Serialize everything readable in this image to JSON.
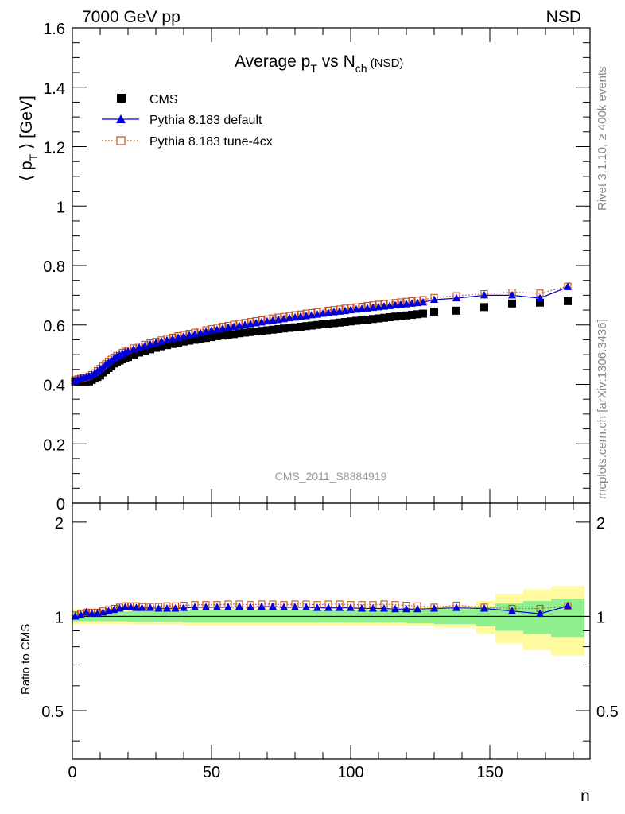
{
  "header": {
    "energy": "7000 GeV pp",
    "process": "NSD",
    "title_prefix": "Average p",
    "title_sub1": "T",
    "title_middle": " vs N",
    "title_sub2": "ch",
    "title_suffix": " (NSD)",
    "analysis_id": "CMS_2011_S8884919",
    "side_label_top": "Rivet 3.1.10, ≥ 400k events",
    "side_label_bottom": "mcplots.cern.ch [arXiv:1306.3436]"
  },
  "chart_data": [
    {
      "type": "scatter",
      "panel": "main",
      "ylabel_open": "⟨ p",
      "ylabel_sub": "T",
      "ylabel_close": " ⟩ [GeV]",
      "ylim": [
        0,
        1.6
      ],
      "xlim": [
        0,
        186
      ],
      "yticks": [
        {
          "v": 0,
          "label": "0"
        },
        {
          "v": 0.2,
          "label": "0.2"
        },
        {
          "v": 0.4,
          "label": "0.4"
        },
        {
          "v": 0.6,
          "label": "0.6"
        },
        {
          "v": 0.8,
          "label": "0.8"
        },
        {
          "v": 1.0,
          "label": "1"
        },
        {
          "v": 1.2,
          "label": "1.2"
        },
        {
          "v": 1.4,
          "label": "1.4"
        },
        {
          "v": 1.6,
          "label": "1.6"
        }
      ],
      "legend_position": "top-left",
      "series": [
        {
          "name": "CMS",
          "marker": "square",
          "color": "#000000",
          "x": [
            1,
            2,
            3,
            4,
            5,
            6,
            7,
            8,
            9,
            10,
            11,
            12,
            13,
            14,
            15,
            16,
            17,
            18,
            19,
            20,
            22,
            24,
            26,
            28,
            30,
            32,
            34,
            36,
            38,
            40,
            42,
            44,
            46,
            48,
            50,
            52,
            54,
            56,
            58,
            60,
            62,
            64,
            66,
            68,
            70,
            72,
            74,
            76,
            78,
            80,
            82,
            84,
            86,
            88,
            90,
            92,
            94,
            96,
            98,
            100,
            102,
            104,
            106,
            108,
            110,
            112,
            114,
            116,
            118,
            120,
            122,
            124,
            126,
            130,
            138,
            148,
            158,
            168,
            178
          ],
          "y": [
            0.41,
            0.41,
            0.41,
            0.41,
            0.41,
            0.41,
            0.415,
            0.42,
            0.425,
            0.43,
            0.44,
            0.447,
            0.455,
            0.462,
            0.47,
            0.476,
            0.48,
            0.484,
            0.488,
            0.492,
            0.5,
            0.507,
            0.513,
            0.518,
            0.523,
            0.528,
            0.532,
            0.536,
            0.54,
            0.544,
            0.547,
            0.55,
            0.553,
            0.556,
            0.559,
            0.562,
            0.564,
            0.567,
            0.569,
            0.572,
            0.574,
            0.576,
            0.578,
            0.58,
            0.582,
            0.584,
            0.586,
            0.588,
            0.59,
            0.592,
            0.594,
            0.596,
            0.598,
            0.6,
            0.602,
            0.604,
            0.606,
            0.608,
            0.61,
            0.612,
            0.614,
            0.616,
            0.618,
            0.62,
            0.622,
            0.624,
            0.626,
            0.628,
            0.63,
            0.632,
            0.634,
            0.636,
            0.638,
            0.645,
            0.648,
            0.66,
            0.672,
            0.675,
            0.68
          ]
        },
        {
          "name": "Pythia 8.183 default",
          "marker": "triangle",
          "line": "solid",
          "color": "#0000dd",
          "x": [
            1,
            2,
            3,
            4,
            5,
            6,
            7,
            8,
            9,
            10,
            11,
            12,
            13,
            14,
            15,
            16,
            17,
            18,
            19,
            20,
            22,
            24,
            26,
            28,
            30,
            32,
            34,
            36,
            38,
            40,
            42,
            44,
            46,
            48,
            50,
            52,
            54,
            56,
            58,
            60,
            62,
            64,
            66,
            68,
            70,
            72,
            74,
            76,
            78,
            80,
            82,
            84,
            86,
            88,
            90,
            92,
            94,
            96,
            98,
            100,
            102,
            104,
            106,
            108,
            110,
            112,
            114,
            116,
            118,
            120,
            122,
            124,
            126,
            130,
            138,
            148,
            158,
            168,
            178
          ],
          "y": [
            0.41,
            0.415,
            0.42,
            0.422,
            0.424,
            0.426,
            0.43,
            0.436,
            0.443,
            0.45,
            0.458,
            0.466,
            0.473,
            0.48,
            0.487,
            0.493,
            0.498,
            0.503,
            0.507,
            0.511,
            0.518,
            0.524,
            0.529,
            0.534,
            0.539,
            0.544,
            0.548,
            0.553,
            0.557,
            0.561,
            0.565,
            0.569,
            0.573,
            0.577,
            0.581,
            0.584,
            0.588,
            0.591,
            0.594,
            0.597,
            0.6,
            0.603,
            0.606,
            0.609,
            0.612,
            0.615,
            0.617,
            0.62,
            0.623,
            0.625,
            0.628,
            0.63,
            0.633,
            0.635,
            0.638,
            0.64,
            0.643,
            0.645,
            0.647,
            0.65,
            0.652,
            0.654,
            0.656,
            0.658,
            0.66,
            0.662,
            0.664,
            0.666,
            0.668,
            0.67,
            0.672,
            0.674,
            0.676,
            0.685,
            0.69,
            0.7,
            0.7,
            0.69,
            0.728
          ]
        },
        {
          "name": "Pythia 8.183 tune-4cx",
          "marker": "open-square",
          "line": "dotted",
          "color": "#c0501e",
          "x": [
            1,
            2,
            3,
            4,
            5,
            6,
            7,
            8,
            9,
            10,
            11,
            12,
            13,
            14,
            15,
            16,
            17,
            18,
            19,
            20,
            22,
            24,
            26,
            28,
            30,
            32,
            34,
            36,
            38,
            40,
            42,
            44,
            46,
            48,
            50,
            52,
            54,
            56,
            58,
            60,
            62,
            64,
            66,
            68,
            70,
            72,
            74,
            76,
            78,
            80,
            82,
            84,
            86,
            88,
            90,
            92,
            94,
            96,
            98,
            100,
            102,
            104,
            106,
            108,
            110,
            112,
            114,
            116,
            118,
            120,
            122,
            124,
            126,
            130,
            138,
            148,
            158,
            168,
            178
          ],
          "y": [
            0.415,
            0.418,
            0.42,
            0.422,
            0.424,
            0.427,
            0.432,
            0.438,
            0.445,
            0.453,
            0.461,
            0.469,
            0.477,
            0.484,
            0.491,
            0.497,
            0.502,
            0.507,
            0.511,
            0.515,
            0.522,
            0.528,
            0.534,
            0.539,
            0.544,
            0.549,
            0.554,
            0.558,
            0.563,
            0.567,
            0.571,
            0.575,
            0.579,
            0.583,
            0.587,
            0.591,
            0.595,
            0.598,
            0.602,
            0.605,
            0.608,
            0.611,
            0.614,
            0.617,
            0.62,
            0.623,
            0.626,
            0.628,
            0.631,
            0.634,
            0.636,
            0.639,
            0.641,
            0.644,
            0.646,
            0.649,
            0.651,
            0.653,
            0.656,
            0.658,
            0.66,
            0.662,
            0.665,
            0.667,
            0.669,
            0.671,
            0.673,
            0.675,
            0.677,
            0.679,
            0.681,
            0.683,
            0.685,
            0.692,
            0.698,
            0.705,
            0.71,
            0.707,
            0.73
          ]
        }
      ]
    },
    {
      "type": "line",
      "panel": "ratio",
      "ylabel": "Ratio to CMS",
      "xlabel": "n",
      "ylim": [
        0.35,
        2.3
      ],
      "xlim": [
        0,
        186
      ],
      "xticks": [
        {
          "v": 0,
          "label": "0"
        },
        {
          "v": 50,
          "label": "50"
        },
        {
          "v": 100,
          "label": "100"
        },
        {
          "v": 150,
          "label": "150"
        }
      ],
      "yticks": [
        {
          "v": 0.5,
          "label": "0.5"
        },
        {
          "v": 1,
          "label": "1"
        },
        {
          "v": 2,
          "label": "2"
        }
      ],
      "uncertainty_bands": {
        "x_edges": [
          0,
          10,
          20,
          40,
          60,
          80,
          100,
          120,
          130,
          145,
          152,
          162,
          172,
          184
        ],
        "inner_half_width": [
          0.035,
          0.035,
          0.04,
          0.045,
          0.045,
          0.045,
          0.045,
          0.05,
          0.055,
          0.07,
          0.1,
          0.12,
          0.14,
          0.15
        ],
        "outer_half_width": [
          0.055,
          0.055,
          0.06,
          0.065,
          0.065,
          0.065,
          0.065,
          0.07,
          0.08,
          0.12,
          0.18,
          0.22,
          0.25,
          0.27
        ],
        "inner_color": "#90f090",
        "outer_color": "#fff9a0"
      },
      "series": [
        {
          "name": "Pythia 8.183 default",
          "color": "#0000dd",
          "x": [
            1,
            3,
            5,
            7,
            9,
            11,
            13,
            15,
            17,
            19,
            21,
            23,
            25,
            28,
            31,
            34,
            37,
            40,
            44,
            48,
            52,
            56,
            60,
            64,
            68,
            72,
            76,
            80,
            84,
            88,
            92,
            96,
            100,
            104,
            108,
            112,
            116,
            120,
            124,
            130,
            138,
            148,
            158,
            168,
            178
          ],
          "y": [
            1.0,
            1.01,
            1.03,
            1.02,
            1.02,
            1.03,
            1.04,
            1.05,
            1.06,
            1.07,
            1.07,
            1.065,
            1.065,
            1.065,
            1.06,
            1.06,
            1.06,
            1.065,
            1.07,
            1.07,
            1.07,
            1.07,
            1.075,
            1.07,
            1.075,
            1.075,
            1.07,
            1.07,
            1.07,
            1.065,
            1.065,
            1.065,
            1.065,
            1.06,
            1.06,
            1.06,
            1.055,
            1.055,
            1.055,
            1.06,
            1.065,
            1.06,
            1.04,
            1.02,
            1.08
          ]
        },
        {
          "name": "Pythia 8.183 tune-4cx",
          "color": "#c0501e",
          "x": [
            1,
            3,
            5,
            7,
            9,
            11,
            13,
            15,
            17,
            19,
            21,
            23,
            25,
            28,
            31,
            34,
            37,
            40,
            44,
            48,
            52,
            56,
            60,
            64,
            68,
            72,
            76,
            80,
            84,
            88,
            92,
            96,
            100,
            104,
            108,
            112,
            116,
            120,
            124,
            130,
            138,
            148,
            158,
            168,
            178
          ],
          "y": [
            1.01,
            1.02,
            1.03,
            1.03,
            1.03,
            1.04,
            1.05,
            1.06,
            1.07,
            1.08,
            1.08,
            1.08,
            1.075,
            1.075,
            1.075,
            1.08,
            1.08,
            1.085,
            1.09,
            1.09,
            1.09,
            1.095,
            1.095,
            1.09,
            1.095,
            1.095,
            1.09,
            1.095,
            1.095,
            1.09,
            1.095,
            1.095,
            1.09,
            1.09,
            1.09,
            1.095,
            1.09,
            1.085,
            1.08,
            1.07,
            1.085,
            1.07,
            1.06,
            1.06,
            1.08
          ]
        }
      ]
    }
  ]
}
